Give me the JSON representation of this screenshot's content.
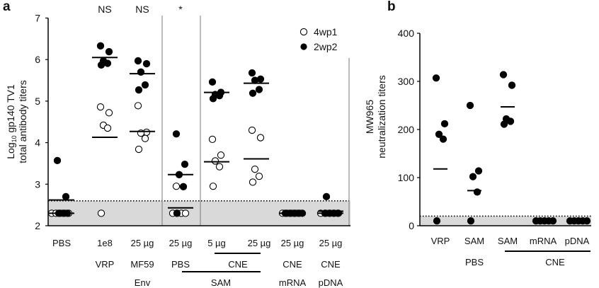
{
  "chart_data": [
    {
      "panel": "a",
      "type": "scatter",
      "ylabel_line1": "Log",
      "ylabel_sub": "10",
      "ylabel_line1_rest": " gp140 TV1",
      "ylabel_line2": "total antibody titers",
      "ylim": [
        2,
        7
      ],
      "yticks": [
        "2",
        "3",
        "4",
        "5",
        "6",
        "7"
      ],
      "detection_limit": 2.6,
      "legend": [
        {
          "name": "4wp1",
          "style": "open"
        },
        {
          "name": "2wp2",
          "style": "filled"
        }
      ],
      "legend_placement": "top-right",
      "significance": [
        "",
        "NS",
        "NS",
        "*",
        "",
        "",
        "",
        ""
      ],
      "x_labels": {
        "dose": [
          "PBS",
          "1e8",
          "25 µg",
          "25 µg",
          "5 µg",
          "25 µg",
          "25 µg",
          "25 µg"
        ],
        "vehicle": [
          "",
          "VRP",
          "MF59",
          "PBS",
          "",
          "",
          "CNE",
          "CNE"
        ],
        "antigen": [
          "",
          "",
          "Env",
          "",
          "",
          "",
          "mRNA",
          "pDNA"
        ],
        "brackets": [
          {
            "label": "CNE",
            "from": 4,
            "to": 5,
            "row": 2
          },
          {
            "label": "SAM",
            "from": 3,
            "to": 5,
            "row": 3
          }
        ]
      },
      "series": [
        {
          "name": "4wp1",
          "style": "open",
          "values": [
            [
              2.3,
              2.3,
              2.3,
              2.3,
              2.3
            ],
            [
              4.86,
              4.72,
              4.42,
              4.35,
              2.3
            ],
            [
              4.89,
              4.25,
              4.23,
              4.1,
              3.84
            ],
            [
              2.95,
              2.3,
              2.3,
              2.3,
              2.3
            ],
            [
              4.08,
              3.7,
              3.56,
              3.42,
              2.95
            ],
            [
              4.3,
              4.12,
              3.36,
              3.19,
              3.05
            ],
            [
              2.3,
              2.3,
              2.3,
              2.3,
              2.3
            ],
            [
              2.3,
              2.3,
              2.3,
              2.3,
              2.3
            ]
          ],
          "means": [
            2.3,
            4.13,
            4.27,
            2.43,
            3.54,
            3.61,
            2.3,
            2.3
          ]
        },
        {
          "name": "2wp2",
          "style": "filled",
          "values": [
            [
              3.57,
              2.7,
              2.3,
              2.3,
              2.3
            ],
            [
              6.33,
              6.19,
              5.97,
              5.91,
              5.87
            ],
            [
              5.97,
              5.9,
              5.7,
              5.39,
              5.27
            ],
            [
              4.21,
              3.48,
              3.23,
              2.94,
              2.3
            ],
            [
              5.46,
              5.21,
              5.16,
              5.13,
              5.06
            ],
            [
              5.68,
              5.53,
              5.5,
              5.28,
              5.19
            ],
            [
              2.3,
              2.3,
              2.3,
              2.3,
              2.3
            ],
            [
              2.7,
              2.3,
              2.3,
              2.3,
              2.3
            ]
          ],
          "means": [
            2.62,
            6.05,
            5.66,
            3.23,
            5.21,
            5.43,
            2.3,
            2.35
          ]
        }
      ]
    },
    {
      "panel": "b",
      "type": "scatter",
      "ylabel_line1": "MW965",
      "ylabel_line2": "neutralization titers",
      "ylim": [
        0,
        400
      ],
      "yticks": [
        "0",
        "100",
        "200",
        "300",
        "400"
      ],
      "detection_limit": 20,
      "x_labels": {
        "row1": [
          "VRP",
          "SAM",
          "SAM",
          "mRNA",
          "pDNA"
        ],
        "row2": [
          "",
          "PBS",
          "",
          "",
          ""
        ],
        "brackets": [
          {
            "label": "CNE",
            "from": 2,
            "to": 4,
            "row": 2
          }
        ]
      },
      "series": [
        {
          "name": "2wp2",
          "style": "filled",
          "values": [
            [
              307,
              212,
              190,
              180,
              10
            ],
            [
              250,
              114,
              102,
              70,
              10
            ],
            [
              314,
              292,
              222,
              217,
              211
            ],
            [
              10,
              10,
              10,
              10,
              10
            ],
            [
              10,
              10,
              10,
              10,
              10
            ]
          ],
          "means": [
            118,
            73,
            247,
            10,
            10
          ]
        }
      ]
    }
  ]
}
